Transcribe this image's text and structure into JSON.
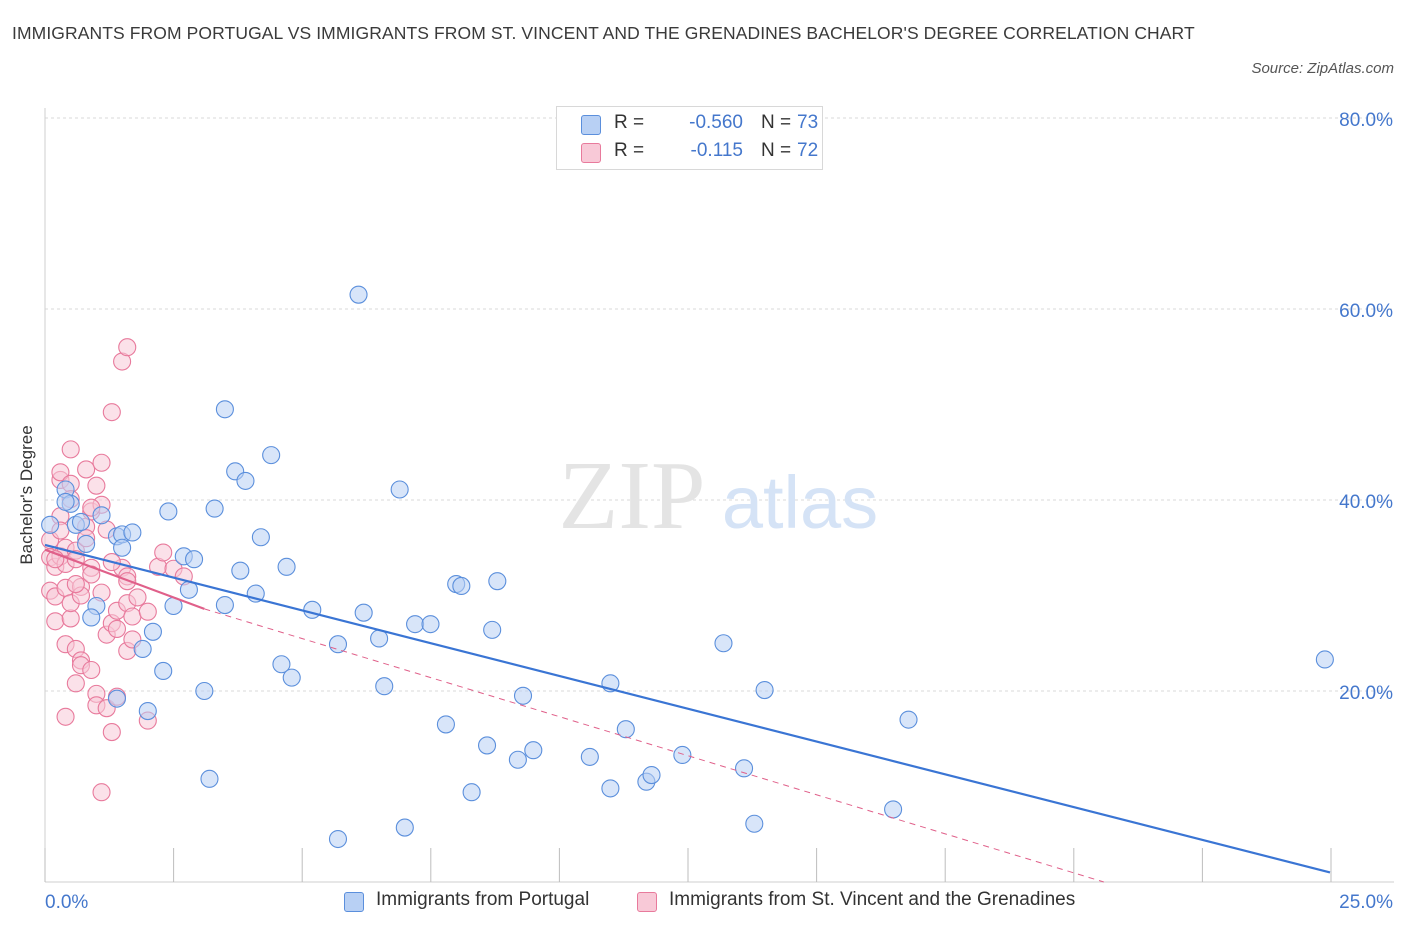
{
  "title": "IMMIGRANTS FROM PORTUGAL VS IMMIGRANTS FROM ST. VINCENT AND THE GRENADINES BACHELOR'S DEGREE CORRELATION CHART",
  "source": "Source: ZipAtlas.com",
  "watermark": {
    "zip": "ZIP",
    "atlas": "atlas"
  },
  "colors": {
    "blue": "#5b8fdc",
    "blue_fill": "#b8d0f4",
    "blue_line": "#3a75d4",
    "pink": "#e87a9c",
    "pink_fill": "#f8c9d7",
    "pink_line": "#e0608a",
    "tick_label": "#4477cc",
    "grid": "#d9d9d9"
  },
  "legend": {
    "rows": [
      {
        "r_label": "R =",
        "r_value": "-0.560",
        "n_label": "N =",
        "n_value": "73"
      },
      {
        "r_label": "R =",
        "r_value": "-0.115",
        "n_label": "N =",
        "n_value": "72"
      }
    ]
  },
  "chart_data": {
    "type": "scatter",
    "title": "IMMIGRANTS FROM PORTUGAL VS IMMIGRANTS FROM ST. VINCENT AND THE GRENADINES BACHELOR'S DEGREE CORRELATION CHART",
    "xlabel": "",
    "ylabel": "Bachelor's Degree",
    "xlim": [
      0,
      25
    ],
    "ylim": [
      0,
      80
    ],
    "x_tick_labels": [
      "0.0%",
      "25.0%"
    ],
    "y_ticks": [
      20,
      40,
      60,
      80
    ],
    "y_tick_labels": [
      "20.0%",
      "40.0%",
      "60.0%",
      "80.0%"
    ],
    "grid": "horizontal dashed",
    "legend_position": "top-center",
    "series": [
      {
        "name": "Immigrants from Portugal",
        "color": "#5b8fdc",
        "trend": {
          "x": [
            0,
            25
          ],
          "y": [
            35.3,
            1.0
          ],
          "style": "solid"
        },
        "points": [
          [
            0.1,
            37.4
          ],
          [
            0.4,
            41.1
          ],
          [
            0.5,
            39.6
          ],
          [
            0.4,
            39.8
          ],
          [
            0.6,
            37.4
          ],
          [
            0.7,
            37.7
          ],
          [
            0.8,
            35.4
          ],
          [
            1.1,
            38.4
          ],
          [
            1.0,
            28.9
          ],
          [
            0.9,
            27.7
          ],
          [
            1.4,
            36.2
          ],
          [
            1.5,
            36.4
          ],
          [
            1.7,
            36.6
          ],
          [
            1.5,
            35.0
          ],
          [
            1.9,
            24.4
          ],
          [
            2.0,
            17.9
          ],
          [
            2.1,
            26.2
          ],
          [
            2.3,
            22.1
          ],
          [
            2.4,
            38.8
          ],
          [
            2.5,
            28.9
          ],
          [
            2.7,
            34.1
          ],
          [
            2.8,
            30.6
          ],
          [
            2.9,
            33.8
          ],
          [
            3.1,
            20.0
          ],
          [
            3.2,
            10.8
          ],
          [
            3.3,
            39.1
          ],
          [
            3.5,
            29.0
          ],
          [
            3.5,
            49.5
          ],
          [
            3.7,
            43.0
          ],
          [
            3.8,
            32.6
          ],
          [
            3.9,
            42.0
          ],
          [
            4.1,
            30.2
          ],
          [
            4.2,
            36.1
          ],
          [
            4.4,
            44.7
          ],
          [
            4.6,
            22.8
          ],
          [
            4.7,
            33.0
          ],
          [
            4.8,
            21.4
          ],
          [
            5.2,
            28.5
          ],
          [
            5.7,
            24.9
          ],
          [
            6.1,
            61.5
          ],
          [
            6.2,
            28.2
          ],
          [
            6.5,
            25.5
          ],
          [
            6.6,
            20.5
          ],
          [
            6.9,
            41.1
          ],
          [
            7.2,
            27.0
          ],
          [
            7.5,
            27.0
          ],
          [
            7.8,
            16.5
          ],
          [
            8.0,
            31.2
          ],
          [
            8.1,
            31.0
          ],
          [
            8.3,
            9.4
          ],
          [
            8.6,
            14.3
          ],
          [
            8.7,
            26.4
          ],
          [
            8.8,
            31.5
          ],
          [
            9.2,
            12.8
          ],
          [
            9.3,
            19.5
          ],
          [
            9.5,
            13.8
          ],
          [
            10.6,
            13.1
          ],
          [
            11.0,
            9.8
          ],
          [
            11.0,
            20.8
          ],
          [
            11.3,
            16.0
          ],
          [
            11.7,
            10.5
          ],
          [
            11.8,
            11.2
          ],
          [
            12.4,
            13.3
          ],
          [
            13.2,
            25.0
          ],
          [
            13.6,
            11.9
          ],
          [
            13.8,
            6.1
          ],
          [
            14.0,
            20.1
          ],
          [
            16.5,
            7.6
          ],
          [
            16.8,
            17.0
          ],
          [
            5.7,
            4.5
          ],
          [
            7.0,
            5.7
          ],
          [
            1.4,
            19.2
          ],
          [
            24.9,
            23.3
          ]
        ]
      },
      {
        "name": "Immigrants from St. Vincent and the Grenadines",
        "color": "#e87a9c",
        "trend_solid": {
          "x": [
            0,
            3.1
          ],
          "y": [
            34.8,
            28.6
          ],
          "style": "solid"
        },
        "trend_dashed": {
          "x": [
            3.1,
            20.6
          ],
          "y": [
            28.6,
            0
          ],
          "style": "dashed"
        },
        "points": [
          [
            0.1,
            34.0
          ],
          [
            0.1,
            30.5
          ],
          [
            0.1,
            35.8
          ],
          [
            0.2,
            27.3
          ],
          [
            0.2,
            29.9
          ],
          [
            0.2,
            33.0
          ],
          [
            0.3,
            34.1
          ],
          [
            0.3,
            38.3
          ],
          [
            0.3,
            42.1
          ],
          [
            0.3,
            42.9
          ],
          [
            0.4,
            33.3
          ],
          [
            0.4,
            35.0
          ],
          [
            0.4,
            24.9
          ],
          [
            0.4,
            30.8
          ],
          [
            0.4,
            17.3
          ],
          [
            0.5,
            41.7
          ],
          [
            0.5,
            40.1
          ],
          [
            0.5,
            27.6
          ],
          [
            0.5,
            29.2
          ],
          [
            0.5,
            45.3
          ],
          [
            0.6,
            34.7
          ],
          [
            0.6,
            20.8
          ],
          [
            0.6,
            33.8
          ],
          [
            0.6,
            24.4
          ],
          [
            0.7,
            23.2
          ],
          [
            0.7,
            22.7
          ],
          [
            0.7,
            30.9
          ],
          [
            0.7,
            30.0
          ],
          [
            0.8,
            37.2
          ],
          [
            0.8,
            43.2
          ],
          [
            0.8,
            36.0
          ],
          [
            0.9,
            38.8
          ],
          [
            0.9,
            22.2
          ],
          [
            0.9,
            32.9
          ],
          [
            0.9,
            32.2
          ],
          [
            1.0,
            41.5
          ],
          [
            1.0,
            19.7
          ],
          [
            1.0,
            18.5
          ],
          [
            1.1,
            43.9
          ],
          [
            1.1,
            9.4
          ],
          [
            1.1,
            39.5
          ],
          [
            1.2,
            25.9
          ],
          [
            1.2,
            18.2
          ],
          [
            1.2,
            36.9
          ],
          [
            1.3,
            27.1
          ],
          [
            1.3,
            49.2
          ],
          [
            1.3,
            15.7
          ],
          [
            1.4,
            28.4
          ],
          [
            1.4,
            26.5
          ],
          [
            1.4,
            19.4
          ],
          [
            1.5,
            32.9
          ],
          [
            1.5,
            54.5
          ],
          [
            1.6,
            29.2
          ],
          [
            1.6,
            32.0
          ],
          [
            1.6,
            24.2
          ],
          [
            1.6,
            56.0
          ],
          [
            1.7,
            27.8
          ],
          [
            1.7,
            25.4
          ],
          [
            1.8,
            29.8
          ],
          [
            2.0,
            16.9
          ],
          [
            2.2,
            33.0
          ],
          [
            2.3,
            34.5
          ],
          [
            2.5,
            32.8
          ],
          [
            2.7,
            32.0
          ],
          [
            0.2,
            33.8
          ],
          [
            0.3,
            36.8
          ],
          [
            0.6,
            31.2
          ],
          [
            0.9,
            39.2
          ],
          [
            1.1,
            30.3
          ],
          [
            1.3,
            33.5
          ],
          [
            1.6,
            31.5
          ],
          [
            2.0,
            28.3
          ]
        ]
      }
    ]
  },
  "bottom_legend": [
    {
      "label": "Immigrants from Portugal"
    },
    {
      "label": "Immigrants from St. Vincent and the Grenadines"
    }
  ]
}
